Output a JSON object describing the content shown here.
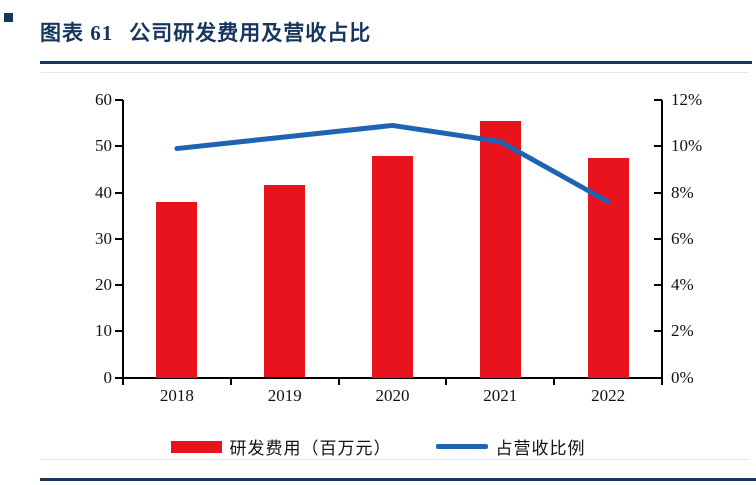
{
  "page": {
    "figure_label": "图表 61",
    "figure_title": "公司研发费用及营收占比",
    "accent_color": "#17365d"
  },
  "chart_data": {
    "type": "bar",
    "title": "图表 61 公司研发费用及营收占比",
    "categories": [
      "2018",
      "2019",
      "2020",
      "2021",
      "2022"
    ],
    "series": [
      {
        "name": "研发费用（百万元）",
        "type": "bar",
        "axis": "left",
        "color": "#e8131c",
        "values": [
          38.0,
          41.7,
          48.0,
          55.5,
          47.5
        ]
      },
      {
        "name": "占营收比例",
        "type": "line",
        "axis": "right",
        "color": "#1e64b2",
        "unit": "%",
        "values": [
          9.9,
          10.4,
          10.9,
          10.2,
          7.6
        ]
      }
    ],
    "left_axis": {
      "label": "",
      "min": 0,
      "max": 60,
      "step": 10,
      "ticks": [
        "0",
        "10",
        "20",
        "30",
        "40",
        "50",
        "60"
      ]
    },
    "right_axis": {
      "label": "",
      "min": 0,
      "max": 12,
      "step": 2,
      "ticks": [
        "0%",
        "2%",
        "4%",
        "6%",
        "8%",
        "10%",
        "12%"
      ]
    },
    "grid": false,
    "legend_position": "bottom"
  }
}
